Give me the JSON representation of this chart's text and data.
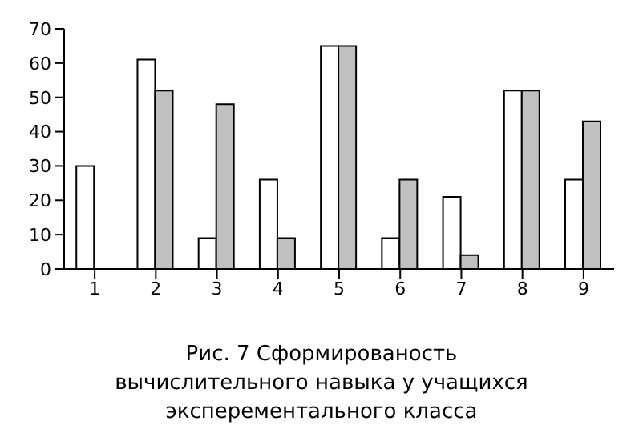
{
  "chart_data": {
    "type": "bar",
    "categories": [
      "1",
      "2",
      "3",
      "4",
      "5",
      "6",
      "7",
      "8",
      "9"
    ],
    "series": [
      {
        "color": "#ffffff",
        "values": [
          30,
          61,
          9,
          26,
          65,
          9,
          21,
          52,
          26
        ]
      },
      {
        "color": "#c0c0c0",
        "values": [
          0,
          52,
          48,
          9,
          65,
          26,
          4,
          52,
          43
        ]
      }
    ],
    "ylim": [
      0,
      70
    ],
    "yticks": [
      0,
      10,
      20,
      30,
      40,
      50,
      60,
      70
    ],
    "grid": false,
    "legend": false,
    "annotations": [
      "Рис. 7 Сформированость вычислительного навыка у учащихся эксперементального класса"
    ]
  }
}
